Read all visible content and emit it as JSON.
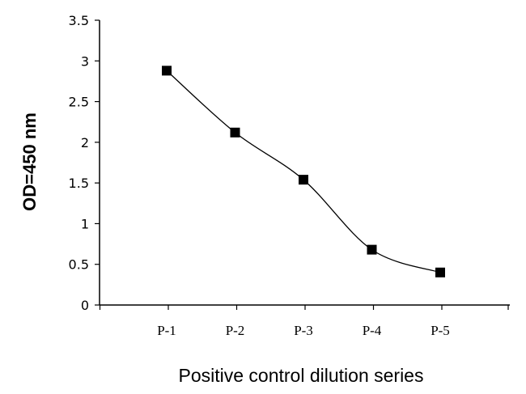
{
  "chart_data": {
    "type": "line",
    "categories": [
      "P-1",
      "P-2",
      "P-3",
      "P-4",
      "P-5"
    ],
    "series": [
      {
        "values": [
          2.88,
          2.12,
          1.54,
          0.68,
          0.4
        ]
      }
    ],
    "xlabel": "Positive control dilution series",
    "ylabel": "OD=450 nm",
    "ylim": [
      0,
      3.5
    ],
    "yticks": [
      "0",
      "0.5",
      "1",
      "1.5",
      "2",
      "2.5",
      "3",
      "3.5"
    ],
    "grid": false,
    "line_style": "smooth",
    "marker": "square",
    "colors": {
      "line": "#000000",
      "marker": "#000000"
    }
  }
}
